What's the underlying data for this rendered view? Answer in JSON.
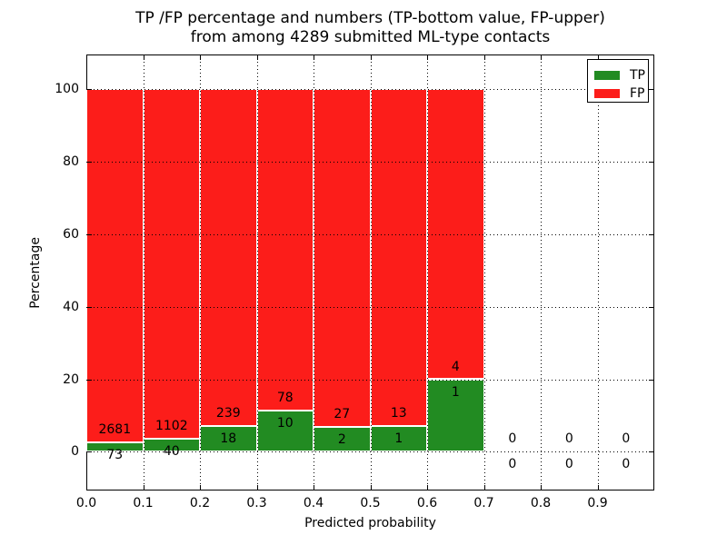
{
  "figure": {
    "title_line1": "TP /FP percentage and numbers (TP-bottom value, FP-upper)",
    "title_line2": "from among 4289 submitted ML-type contacts",
    "xlabel": "Predicted probability",
    "ylabel": "Percentage"
  },
  "legend": {
    "position": "upper right",
    "tp_label": "TP",
    "fp_label": "FP"
  },
  "colors": {
    "tp_green": "#228b22",
    "fp_red": "#fc1d1a",
    "grid": "#000000",
    "text": "#000000"
  },
  "chart_data": {
    "type": "bar",
    "stacked": true,
    "normalization": "each bin normalized to 100% (TP% + FP% = 100)",
    "title": "TP /FP percentage and numbers (TP-bottom value, FP-upper) from among 4289 submitted ML-type contacts",
    "xlabel": "Predicted probability",
    "ylabel": "Percentage",
    "total_contacts": 4289,
    "bin_width": 0.1,
    "bin_starts": [
      0.0,
      0.1,
      0.2,
      0.3,
      0.4,
      0.5,
      0.6,
      0.7,
      0.8,
      0.9
    ],
    "series": [
      {
        "name": "TP",
        "color": "#228b22",
        "counts": [
          73,
          40,
          18,
          10,
          2,
          1,
          1,
          0,
          0,
          0
        ]
      },
      {
        "name": "FP",
        "color": "#fc1d1a",
        "counts": [
          2681,
          1102,
          239,
          78,
          27,
          13,
          4,
          0,
          0,
          0
        ]
      }
    ],
    "tp_percent_by_bin": [
      2.65,
      3.5,
      7.0,
      11.36,
      6.9,
      7.14,
      20.0,
      0,
      0,
      0
    ],
    "xtick_labels": [
      "0.0",
      "0.1",
      "0.2",
      "0.3",
      "0.4",
      "0.5",
      "0.6",
      "0.7",
      "0.8",
      "0.9"
    ],
    "yticks": [
      0,
      20,
      40,
      60,
      80,
      100
    ],
    "ytick_labels": [
      "0",
      "20",
      "40",
      "60",
      "80",
      "100"
    ],
    "xlim": [
      0.0,
      1.0
    ],
    "ylim": [
      -10.7,
      109.6
    ],
    "grid": "dotted",
    "legend_position": "upper right",
    "legend_entries": [
      "TP",
      "FP"
    ]
  }
}
